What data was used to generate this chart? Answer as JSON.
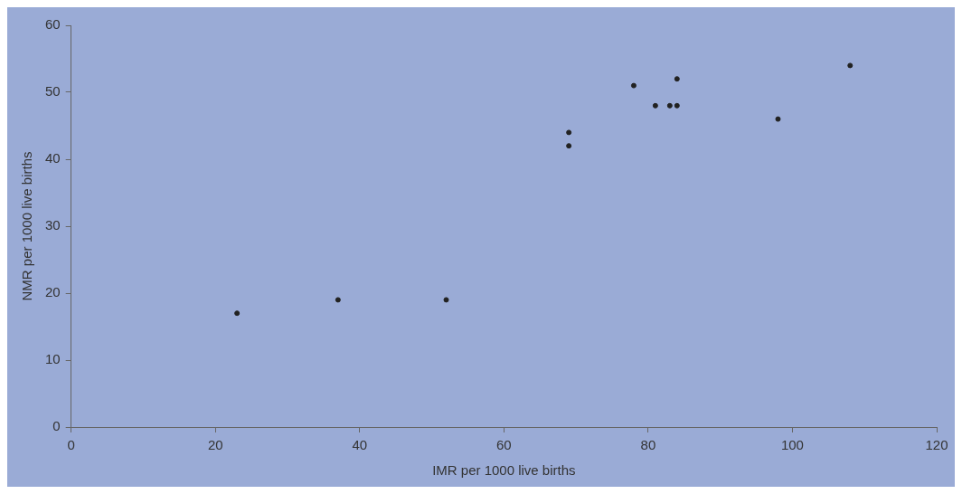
{
  "chart_data": {
    "type": "scatter",
    "xlabel": "IMR per 1000 live births",
    "ylabel": "NMR per 1000 live births",
    "x": [
      23,
      37,
      52,
      69,
      69,
      78,
      81,
      83,
      84,
      84,
      98,
      108
    ],
    "values": [
      17,
      19,
      19,
      44,
      42,
      51,
      48,
      48,
      48,
      52,
      46,
      54
    ],
    "color": "#222222",
    "xlim": [
      0,
      120
    ],
    "xticks": [
      0,
      20,
      40,
      60,
      80,
      100,
      120
    ],
    "ylim": [
      0,
      60
    ],
    "yticks": [
      0,
      10,
      20,
      30,
      40,
      50,
      60
    ],
    "grid": false,
    "legend": false,
    "marker": "circle"
  }
}
